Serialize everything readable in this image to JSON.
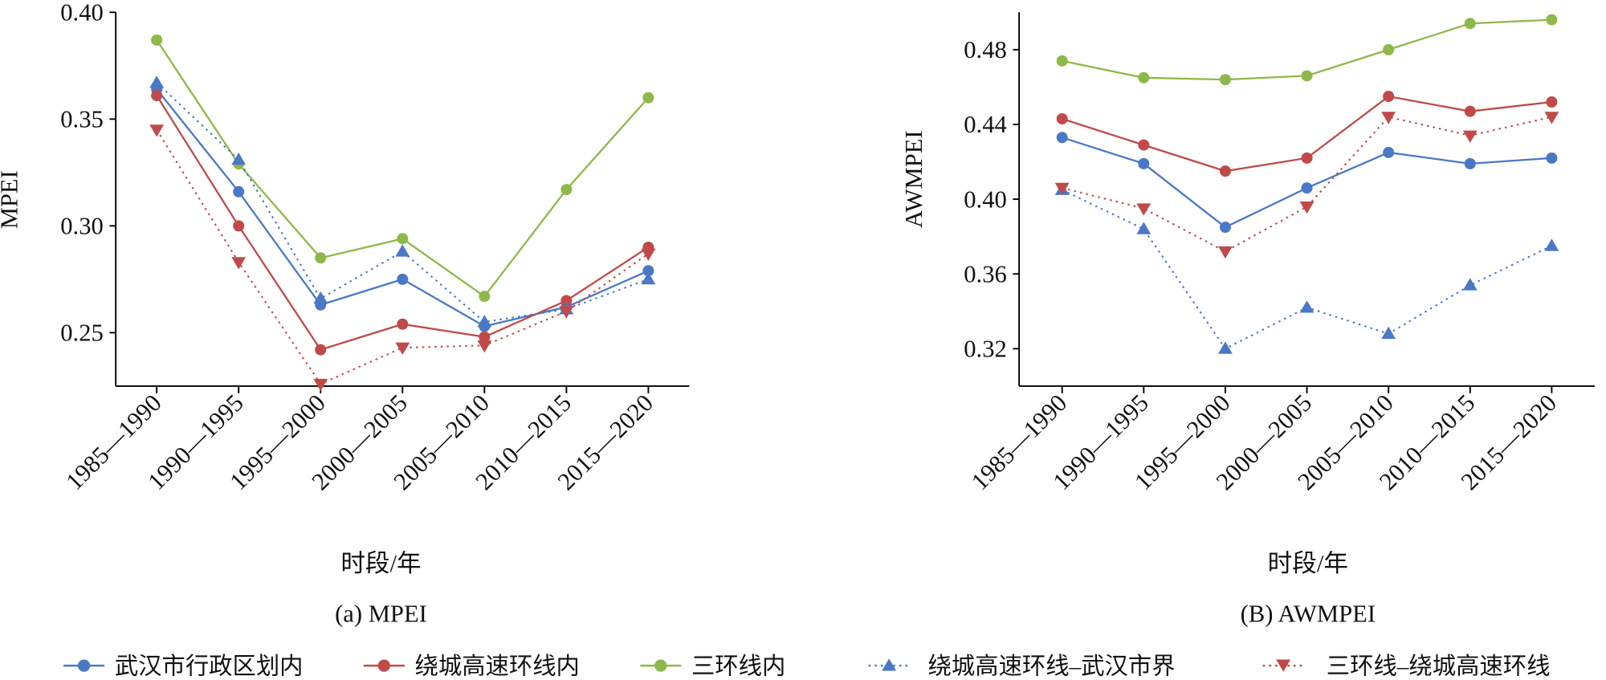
{
  "colors": {
    "wuhan": "#4a78c6",
    "ring_expressway": "#c04a4a",
    "third_ring": "#8fb84a",
    "ring_expressway_to_wuhan": "#4a78c6",
    "third_ring_to_ring_expressway": "#c04a4a"
  },
  "legend": {
    "wuhan": "武汉市行政区划内",
    "ring_expressway": "绕城高速环线内",
    "third_ring": "三环线内",
    "ring_expressway_to_wuhan": "绕城高速环线–武汉市界",
    "third_ring_to_ring_expressway": "三环线–绕城高速环线"
  },
  "chart_data": [
    {
      "type": "line",
      "caption": "(a) MPEI",
      "xlabel": "时段/年",
      "ylabel": "MPEI",
      "categories": [
        "1985—1990",
        "1990—1995",
        "1995—2000",
        "2000—2005",
        "2005—2010",
        "2010—2015",
        "2015—2020"
      ],
      "ylim": [
        0.225,
        0.4
      ],
      "yticks": [
        0.25,
        0.3,
        0.35,
        0.4
      ],
      "ytick_labels": [
        "0.25",
        "0.30",
        "0.35",
        "0.40"
      ],
      "grid": false,
      "series": [
        {
          "name": "武汉市行政区划内",
          "key": "wuhan",
          "marker": "circle",
          "dash": false,
          "values": [
            0.364,
            0.316,
            0.263,
            0.275,
            0.253,
            0.262,
            0.279
          ]
        },
        {
          "name": "绕城高速环线内",
          "key": "ring_expressway",
          "marker": "circle",
          "dash": false,
          "values": [
            0.361,
            0.3,
            0.242,
            0.254,
            0.248,
            0.265,
            0.29
          ]
        },
        {
          "name": "三环线内",
          "key": "third_ring",
          "marker": "circle",
          "dash": false,
          "values": [
            0.387,
            0.329,
            0.285,
            0.294,
            0.267,
            0.317,
            0.36
          ]
        },
        {
          "name": "绕城高速环线–武汉市界",
          "key": "ring_expressway_to_wuhan",
          "marker": "triangle-up",
          "dash": true,
          "values": [
            0.367,
            0.331,
            0.266,
            0.288,
            0.255,
            0.261,
            0.275
          ]
        },
        {
          "name": "三环线–绕城高速环线",
          "key": "third_ring_to_ring_expressway",
          "marker": "triangle-down",
          "dash": true,
          "values": [
            0.345,
            0.283,
            0.226,
            0.243,
            0.244,
            0.26,
            0.287
          ]
        }
      ]
    },
    {
      "type": "line",
      "caption": "(B) AWMPEI",
      "xlabel": "时段/年",
      "ylabel": "AWMPEI",
      "categories": [
        "1985—1990",
        "1990—1995",
        "1995—2000",
        "2000—2005",
        "2005—2010",
        "2010—2015",
        "2015—2020"
      ],
      "ylim": [
        0.3,
        0.5
      ],
      "yticks": [
        0.32,
        0.36,
        0.4,
        0.44,
        0.48
      ],
      "ytick_labels": [
        "0.32",
        "0.36",
        "0.40",
        "0.44",
        "0.48"
      ],
      "grid": false,
      "series": [
        {
          "name": "武汉市行政区划内",
          "key": "wuhan",
          "marker": "circle",
          "dash": false,
          "values": [
            0.433,
            0.419,
            0.385,
            0.406,
            0.425,
            0.419,
            0.422
          ]
        },
        {
          "name": "绕城高速环线内",
          "key": "ring_expressway",
          "marker": "circle",
          "dash": false,
          "values": [
            0.443,
            0.429,
            0.415,
            0.422,
            0.455,
            0.447,
            0.452
          ]
        },
        {
          "name": "三环线内",
          "key": "third_ring",
          "marker": "circle",
          "dash": false,
          "values": [
            0.474,
            0.465,
            0.464,
            0.466,
            0.48,
            0.494,
            0.496
          ]
        },
        {
          "name": "绕城高速环线–武汉市界",
          "key": "ring_expressway_to_wuhan",
          "marker": "triangle-up",
          "dash": true,
          "values": [
            0.405,
            0.384,
            0.32,
            0.342,
            0.328,
            0.354,
            0.375
          ]
        },
        {
          "name": "三环线–绕城高速环线",
          "key": "third_ring_to_ring_expressway",
          "marker": "triangle-down",
          "dash": true,
          "values": [
            0.406,
            0.395,
            0.372,
            0.396,
            0.444,
            0.434,
            0.444
          ]
        }
      ]
    }
  ]
}
